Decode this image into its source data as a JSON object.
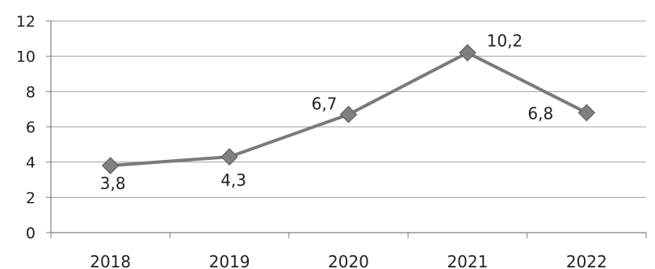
{
  "chart_data": {
    "type": "line",
    "title": "",
    "xlabel": "",
    "ylabel": "",
    "categories": [
      "2018",
      "2019",
      "2020",
      "2021",
      "2022"
    ],
    "series": [
      {
        "values": [
          3.8,
          4.3,
          6.7,
          10.2,
          6.8
        ],
        "data_labels": [
          "3,8",
          "4,3",
          "6,7",
          "10,2",
          "6,8"
        ],
        "color": "#7a7a7a",
        "marker": "diamond"
      }
    ],
    "ylim": [
      0,
      12
    ],
    "yticks": [
      0,
      2,
      4,
      6,
      8,
      10,
      12
    ],
    "grid": true,
    "legend": "none"
  }
}
